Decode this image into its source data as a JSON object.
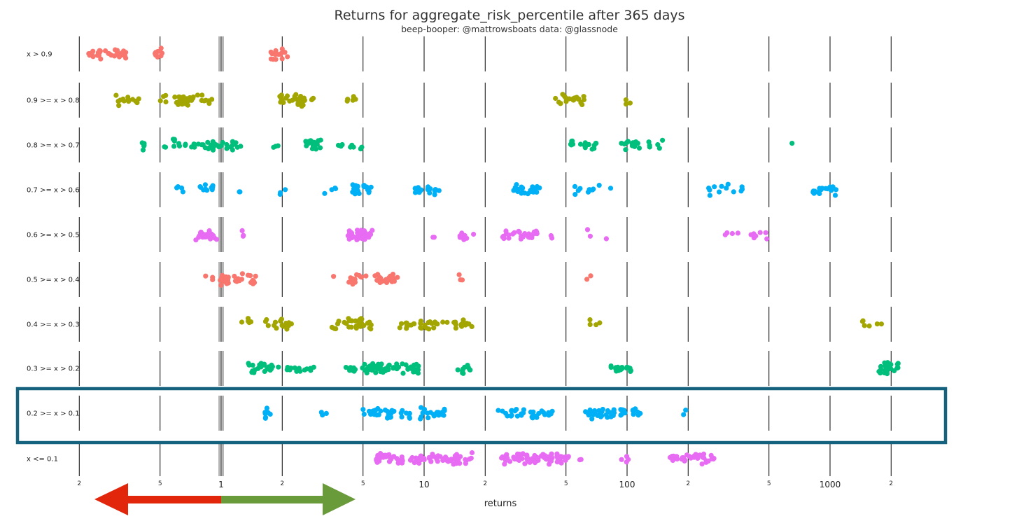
{
  "chart_data": {
    "type": "scatter",
    "title": "Returns for aggregate_risk_percentile after 365 days",
    "subtitle": "beep-booper: @mattrowsboats data: @glassnode",
    "xlabel": "returns",
    "ylabel": "",
    "x_scale": "log",
    "x_range": [
      0.15,
      3500
    ],
    "grid": "vertical lines at 0.2, 0.5, 1, 2, 5, 10, 20, 50, 100, 200, 500, 1000, 2000",
    "reference_line_x": 1,
    "ticks": [
      {
        "v": 0.2,
        "label": "2",
        "major": false
      },
      {
        "v": 0.5,
        "label": "5",
        "major": false
      },
      {
        "v": 1,
        "label": "1",
        "major": true
      },
      {
        "v": 2,
        "label": "2",
        "major": false
      },
      {
        "v": 5,
        "label": "5",
        "major": false
      },
      {
        "v": 10,
        "label": "10",
        "major": true
      },
      {
        "v": 20,
        "label": "2",
        "major": false
      },
      {
        "v": 50,
        "label": "5",
        "major": false
      },
      {
        "v": 100,
        "label": "100",
        "major": true
      },
      {
        "v": 200,
        "label": "2",
        "major": false
      },
      {
        "v": 500,
        "label": "5",
        "major": false
      },
      {
        "v": 1000,
        "label": "1000",
        "major": true
      },
      {
        "v": 2000,
        "label": "2",
        "major": false
      }
    ],
    "highlighted_row": "0.2 >= x > 0.1",
    "series": [
      {
        "name": "x > 0.9",
        "color": "#f8766d",
        "clusters": [
          [
            0.22,
            0.34,
            32
          ],
          [
            0.47,
            0.52,
            10
          ],
          [
            1.75,
            2.15,
            14
          ]
        ]
      },
      {
        "name": "0.9 >= x > 0.8",
        "color": "#a3a500",
        "clusters": [
          [
            0.3,
            0.4,
            14
          ],
          [
            0.5,
            0.9,
            32
          ],
          [
            1.9,
            2.9,
            34
          ],
          [
            4.1,
            4.6,
            6
          ],
          [
            43,
            63,
            22
          ],
          [
            95,
            105,
            3
          ]
        ]
      },
      {
        "name": "0.8 >= x > 0.7",
        "color": "#00bf7d",
        "clusters": [
          [
            0.4,
            0.42,
            5
          ],
          [
            0.52,
            1.25,
            42
          ],
          [
            1.8,
            1.95,
            3
          ],
          [
            2.6,
            3.1,
            20
          ],
          [
            3.5,
            5.1,
            9
          ],
          [
            52,
            72,
            16
          ],
          [
            90,
            115,
            14
          ],
          [
            125,
            150,
            6
          ],
          [
            650,
            650,
            1
          ]
        ]
      },
      {
        "name": "0.7 >= x > 0.6",
        "color": "#00b0f6",
        "clusters": [
          [
            0.6,
            0.65,
            4
          ],
          [
            0.78,
            0.92,
            12
          ],
          [
            1.1,
            1.25,
            2
          ],
          [
            1.9,
            2.1,
            3
          ],
          [
            3.2,
            3.8,
            4
          ],
          [
            4.4,
            5.5,
            22
          ],
          [
            9,
            12,
            24
          ],
          [
            27,
            38,
            20
          ],
          [
            55,
            75,
            10
          ],
          [
            83,
            83,
            1
          ],
          [
            240,
            390,
            12
          ],
          [
            800,
            1100,
            16
          ]
        ]
      },
      {
        "name": "0.6 >= x > 0.5",
        "color": "#e76bf3",
        "clusters": [
          [
            0.75,
            0.95,
            30
          ],
          [
            1.25,
            1.3,
            3
          ],
          [
            4.2,
            5.8,
            30
          ],
          [
            11,
            11.5,
            2
          ],
          [
            15,
            18,
            8
          ],
          [
            24,
            36,
            30
          ],
          [
            42,
            48,
            2
          ],
          [
            62,
            82,
            3
          ],
          [
            270,
            490,
            12
          ]
        ]
      },
      {
        "name": "0.5 >= x > 0.4",
        "color": "#f8766d",
        "clusters": [
          [
            0.82,
            1.1,
            18
          ],
          [
            1.15,
            1.55,
            16
          ],
          [
            3.5,
            3.6,
            1
          ],
          [
            4.2,
            5.2,
            14
          ],
          [
            5.5,
            7.5,
            24
          ],
          [
            14.5,
            15.5,
            3
          ],
          [
            62,
            70,
            2
          ]
        ]
      },
      {
        "name": "0.4 >= x > 0.3",
        "color": "#a3a500",
        "clusters": [
          [
            1.2,
            1.45,
            5
          ],
          [
            1.65,
            2.3,
            16
          ],
          [
            3.4,
            4.4,
            12
          ],
          [
            4.5,
            5.5,
            22
          ],
          [
            7.5,
            13,
            28
          ],
          [
            14,
            18,
            14
          ],
          [
            60,
            76,
            4
          ],
          [
            1400,
            1800,
            6
          ]
        ]
      },
      {
        "name": "0.3 >= x > 0.2",
        "color": "#00bf7d",
        "clusters": [
          [
            1.35,
            1.95,
            22
          ],
          [
            2.1,
            2.9,
            14
          ],
          [
            3.9,
            4.6,
            9
          ],
          [
            4.9,
            7,
            34
          ],
          [
            7,
            9.5,
            22
          ],
          [
            14,
            17,
            12
          ],
          [
            82,
            105,
            18
          ],
          [
            1700,
            2200,
            22
          ]
        ]
      },
      {
        "name": "0.2 >= x > 0.1",
        "color": "#00b0f6",
        "clusters": [
          [
            1.6,
            1.75,
            8
          ],
          [
            3.1,
            3.3,
            3
          ],
          [
            5,
            8.5,
            32
          ],
          [
            9.5,
            13,
            20
          ],
          [
            23,
            31,
            16
          ],
          [
            33,
            43,
            16
          ],
          [
            62,
            100,
            44
          ],
          [
            105,
            125,
            8
          ],
          [
            170,
            195,
            2
          ]
        ]
      },
      {
        "name": "x <= 0.1",
        "color": "#e76bf3",
        "clusters": [
          [
            5.8,
            9.5,
            40
          ],
          [
            9.5,
            18,
            46
          ],
          [
            24,
            52,
            80
          ],
          [
            58,
            62,
            2
          ],
          [
            92,
            102,
            4
          ],
          [
            160,
            270,
            40
          ]
        ]
      }
    ]
  },
  "annotations": {
    "red_arrow_color": "#e1260b",
    "green_arrow_color": "#6a9b3a",
    "highlight_box_color": "#14627e"
  }
}
